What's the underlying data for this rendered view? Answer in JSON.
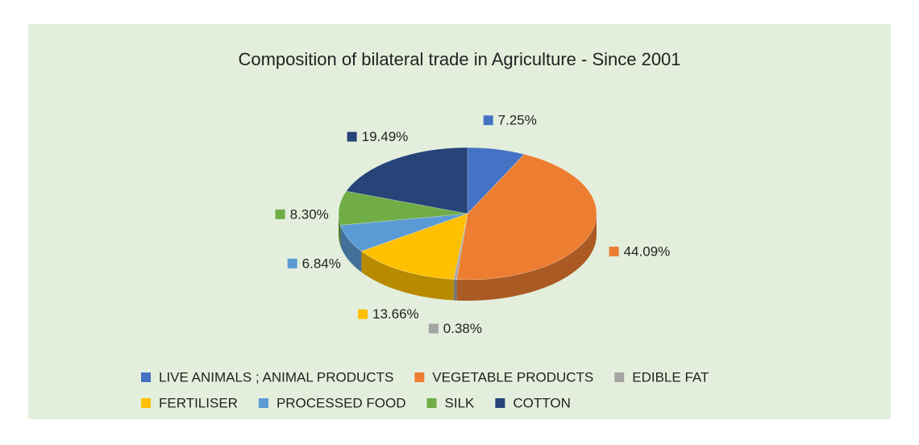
{
  "chart_data": {
    "type": "pie",
    "title": "Composition of bilateral trade in Agriculture - Since 2001",
    "categories": [
      "LIVE ANIMALS ; ANIMAL PRODUCTS",
      "VEGETABLE PRODUCTS",
      "EDIBLE FAT",
      "FERTILISER",
      "PROCESSED FOOD",
      "SILK",
      "COTTON"
    ],
    "values": [
      7.25,
      44.09,
      0.38,
      13.66,
      6.84,
      8.3,
      19.49
    ],
    "value_labels": [
      "7.25%",
      "44.09%",
      "0.38%",
      "13.66%",
      "6.84%",
      "8.30%",
      "19.49%"
    ],
    "colors": [
      "#4472c4",
      "#ed7d31",
      "#a5a5a5",
      "#ffc000",
      "#5b9bd5",
      "#70ad47",
      "#264478"
    ],
    "legend": "bottom"
  }
}
